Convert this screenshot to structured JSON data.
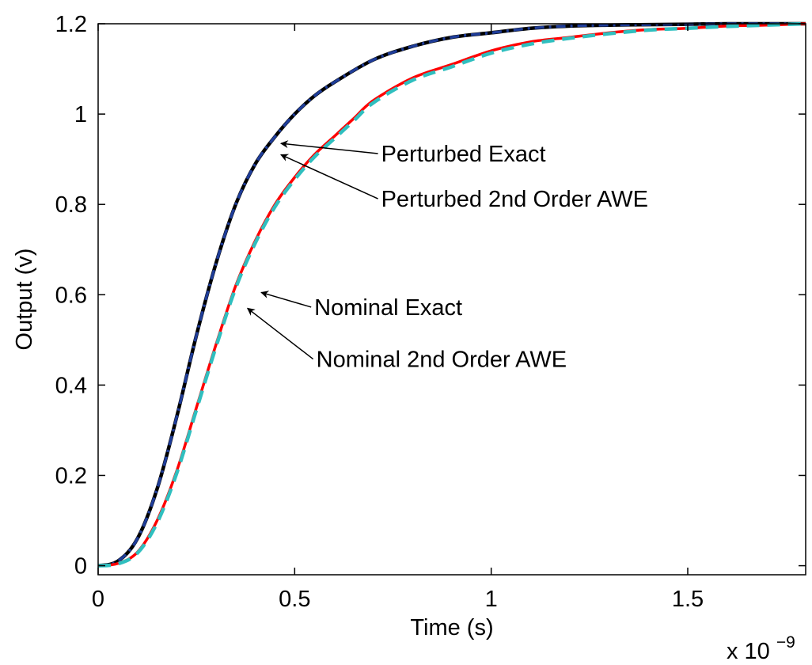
{
  "chart_data": {
    "type": "line",
    "title": "",
    "xlabel": "Time (s)",
    "ylabel": "Output (v)",
    "x_exponent_base": "x 10",
    "x_exponent_power": "−9",
    "xlim": [
      0,
      1.8
    ],
    "ylim": [
      -0.02,
      1.2
    ],
    "x_ticks": [
      0,
      0.5,
      1,
      1.5
    ],
    "x_tick_labels": [
      "0",
      "0.5",
      "1",
      "1.5"
    ],
    "y_ticks": [
      0,
      0.2,
      0.4,
      0.6,
      0.8,
      1.0,
      1.2
    ],
    "y_tick_labels": [
      "0",
      "0.2",
      "0.4",
      "0.6",
      "0.8",
      "1",
      "1.2"
    ],
    "grid": false,
    "series": [
      {
        "color": "#000000",
        "dash": "solid",
        "x": [
          0,
          0.05,
          0.1,
          0.15,
          0.2,
          0.25,
          0.3,
          0.35,
          0.4,
          0.45,
          0.5,
          0.55,
          0.6,
          0.7,
          0.8,
          0.9,
          1.0,
          1.1,
          1.2,
          1.3,
          1.4,
          1.5,
          1.6,
          1.7,
          1.8
        ],
        "values": [
          0,
          0.01,
          0.06,
          0.17,
          0.33,
          0.51,
          0.67,
          0.8,
          0.89,
          0.95,
          1.0,
          1.04,
          1.07,
          1.12,
          1.15,
          1.17,
          1.18,
          1.19,
          1.195,
          1.197,
          1.198,
          1.199,
          1.2,
          1.2,
          1.2
        ]
      },
      {
        "color": "#1f3d99",
        "dash": "dashdot",
        "x": [
          0,
          0.05,
          0.1,
          0.15,
          0.2,
          0.25,
          0.3,
          0.35,
          0.4,
          0.45,
          0.5,
          0.55,
          0.6,
          0.7,
          0.8,
          0.9,
          1.0,
          1.1,
          1.2,
          1.3,
          1.4,
          1.5,
          1.6,
          1.7,
          1.8
        ],
        "values": [
          0,
          0.01,
          0.06,
          0.17,
          0.33,
          0.51,
          0.67,
          0.8,
          0.89,
          0.95,
          1.0,
          1.04,
          1.07,
          1.12,
          1.15,
          1.17,
          1.18,
          1.19,
          1.195,
          1.197,
          1.198,
          1.199,
          1.2,
          1.2,
          1.2
        ]
      },
      {
        "color": "#ff0000",
        "dash": "solid",
        "x": [
          0,
          0.05,
          0.1,
          0.15,
          0.2,
          0.25,
          0.3,
          0.35,
          0.4,
          0.45,
          0.5,
          0.55,
          0.6,
          0.65,
          0.7,
          0.8,
          0.9,
          1.0,
          1.1,
          1.2,
          1.3,
          1.4,
          1.5,
          1.6,
          1.7,
          1.8
        ],
        "values": [
          0,
          0.005,
          0.03,
          0.1,
          0.21,
          0.35,
          0.49,
          0.62,
          0.72,
          0.8,
          0.86,
          0.91,
          0.95,
          0.99,
          1.03,
          1.08,
          1.11,
          1.14,
          1.16,
          1.17,
          1.18,
          1.187,
          1.19,
          1.195,
          1.197,
          1.2
        ]
      },
      {
        "color": "#2fbfbf",
        "dash": "dashed",
        "x": [
          0,
          0.05,
          0.1,
          0.15,
          0.2,
          0.25,
          0.3,
          0.35,
          0.4,
          0.45,
          0.5,
          0.55,
          0.6,
          0.65,
          0.7,
          0.8,
          0.9,
          1.0,
          1.1,
          1.2,
          1.3,
          1.4,
          1.5,
          1.6,
          1.7,
          1.8
        ],
        "values": [
          0,
          0.004,
          0.028,
          0.095,
          0.205,
          0.345,
          0.485,
          0.615,
          0.715,
          0.795,
          0.855,
          0.905,
          0.945,
          0.985,
          1.025,
          1.075,
          1.105,
          1.135,
          1.155,
          1.168,
          1.178,
          1.186,
          1.19,
          1.194,
          1.197,
          1.2
        ]
      }
    ],
    "annotations": [
      {
        "text": "Perturbed Exact",
        "text_at": [
          0.72,
          0.895
        ],
        "arrow_to": [
          0.465,
          0.935
        ]
      },
      {
        "text": "Perturbed 2nd Order AWE",
        "text_at": [
          0.72,
          0.795
        ],
        "arrow_to": [
          0.465,
          0.91
        ]
      },
      {
        "text": "Nominal Exact",
        "text_at": [
          0.55,
          0.555
        ],
        "arrow_to": [
          0.415,
          0.605
        ]
      },
      {
        "text": "Nominal 2nd Order AWE",
        "text_at": [
          0.555,
          0.44
        ],
        "arrow_to": [
          0.38,
          0.57
        ]
      }
    ]
  }
}
